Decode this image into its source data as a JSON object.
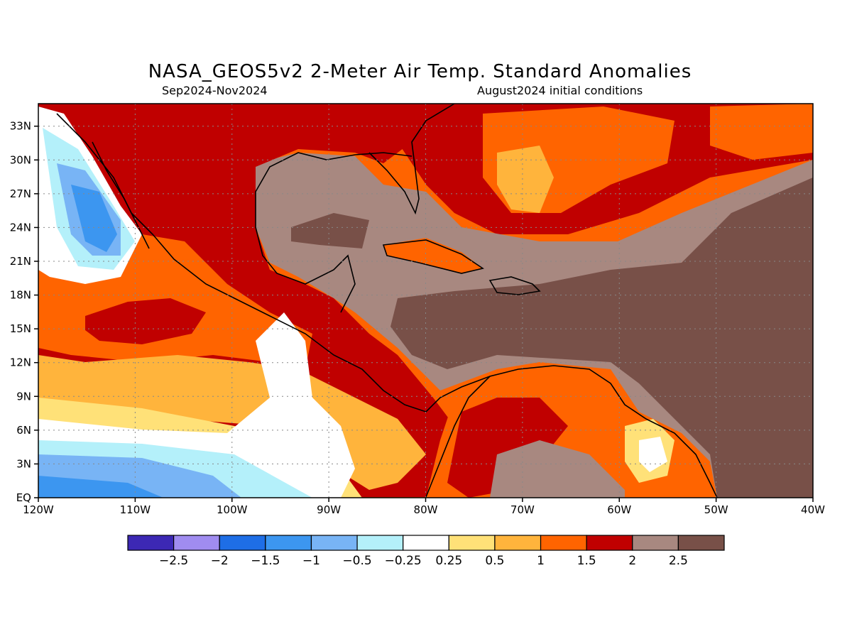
{
  "header": {
    "title": "NASA_GEOS5v2 2-Meter Air Temp. Standard Anomalies",
    "period": "Sep2024-Nov2024",
    "init": "August2024 initial conditions"
  },
  "map": {
    "lon_range": [
      -120,
      -40
    ],
    "lat_range": [
      0,
      35
    ],
    "x_ticks": [
      {
        "lon": -120,
        "label": "120W"
      },
      {
        "lon": -110,
        "label": "110W"
      },
      {
        "lon": -100,
        "label": "100W"
      },
      {
        "lon": -90,
        "label": "90W"
      },
      {
        "lon": -80,
        "label": "80W"
      },
      {
        "lon": -70,
        "label": "70W"
      },
      {
        "lon": -60,
        "label": "60W"
      },
      {
        "lon": -50,
        "label": "50W"
      },
      {
        "lon": -40,
        "label": "40W"
      }
    ],
    "y_ticks": [
      {
        "lat": 0,
        "label": "EQ"
      },
      {
        "lat": 3,
        "label": "3N"
      },
      {
        "lat": 6,
        "label": "6N"
      },
      {
        "lat": 9,
        "label": "9N"
      },
      {
        "lat": 12,
        "label": "12N"
      },
      {
        "lat": 15,
        "label": "15N"
      },
      {
        "lat": 18,
        "label": "18N"
      },
      {
        "lat": 21,
        "label": "21N"
      },
      {
        "lat": 24,
        "label": "24N"
      },
      {
        "lat": 27,
        "label": "27N"
      },
      {
        "lat": 30,
        "label": "30N"
      },
      {
        "lat": 33,
        "label": "33N"
      }
    ],
    "grid": true
  },
  "colorbar": {
    "colors": [
      "#3c28b4",
      "#a08cf0",
      "#1e6ee6",
      "#3c96f0",
      "#78b4f5",
      "#b4f0fa",
      "#ffffff",
      "#ffe178",
      "#ffb43c",
      "#ff6400",
      "#c00000",
      "#a88880",
      "#785048"
    ],
    "labels": [
      "-2.5",
      "-2",
      "-1.5",
      "-1",
      "-0.5",
      "-0.25",
      "0.25",
      "0.5",
      "1",
      "1.5",
      "2",
      "2.5"
    ]
  }
}
